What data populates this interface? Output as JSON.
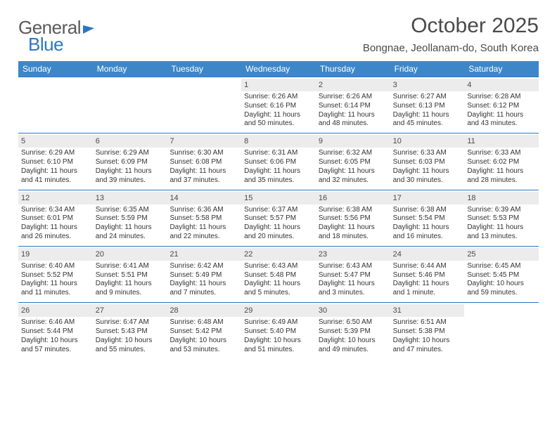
{
  "colors": {
    "header_bg": "#3d87c9",
    "header_text": "#ffffff",
    "week_border": "#2a78c2",
    "daynum_bg": "#ececec",
    "body_text": "#333333",
    "logo_gray": "#5a5a5a",
    "logo_blue": "#2a78c2",
    "page_bg": "#ffffff"
  },
  "typography": {
    "month_title_pt": 30,
    "location_pt": 15,
    "dayheader_pt": 12,
    "daynum_pt": 11,
    "cell_pt": 10,
    "logo_pt": 26,
    "font_family": "Arial"
  },
  "layout": {
    "columns": 7,
    "rows": 5
  },
  "logo": {
    "part1": "General",
    "part2": "Blue"
  },
  "title": "October 2025",
  "location": "Bongnae, Jeollanam-do, South Korea",
  "dayHeaders": [
    "Sunday",
    "Monday",
    "Tuesday",
    "Wednesday",
    "Thursday",
    "Friday",
    "Saturday"
  ],
  "weeks": [
    [
      {
        "empty": true
      },
      {
        "empty": true
      },
      {
        "empty": true
      },
      {
        "day": "1",
        "sunrise": "Sunrise: 6:26 AM",
        "sunset": "Sunset: 6:16 PM",
        "daylight": "Daylight: 11 hours and 50 minutes."
      },
      {
        "day": "2",
        "sunrise": "Sunrise: 6:26 AM",
        "sunset": "Sunset: 6:14 PM",
        "daylight": "Daylight: 11 hours and 48 minutes."
      },
      {
        "day": "3",
        "sunrise": "Sunrise: 6:27 AM",
        "sunset": "Sunset: 6:13 PM",
        "daylight": "Daylight: 11 hours and 45 minutes."
      },
      {
        "day": "4",
        "sunrise": "Sunrise: 6:28 AM",
        "sunset": "Sunset: 6:12 PM",
        "daylight": "Daylight: 11 hours and 43 minutes."
      }
    ],
    [
      {
        "day": "5",
        "sunrise": "Sunrise: 6:29 AM",
        "sunset": "Sunset: 6:10 PM",
        "daylight": "Daylight: 11 hours and 41 minutes."
      },
      {
        "day": "6",
        "sunrise": "Sunrise: 6:29 AM",
        "sunset": "Sunset: 6:09 PM",
        "daylight": "Daylight: 11 hours and 39 minutes."
      },
      {
        "day": "7",
        "sunrise": "Sunrise: 6:30 AM",
        "sunset": "Sunset: 6:08 PM",
        "daylight": "Daylight: 11 hours and 37 minutes."
      },
      {
        "day": "8",
        "sunrise": "Sunrise: 6:31 AM",
        "sunset": "Sunset: 6:06 PM",
        "daylight": "Daylight: 11 hours and 35 minutes."
      },
      {
        "day": "9",
        "sunrise": "Sunrise: 6:32 AM",
        "sunset": "Sunset: 6:05 PM",
        "daylight": "Daylight: 11 hours and 32 minutes."
      },
      {
        "day": "10",
        "sunrise": "Sunrise: 6:33 AM",
        "sunset": "Sunset: 6:03 PM",
        "daylight": "Daylight: 11 hours and 30 minutes."
      },
      {
        "day": "11",
        "sunrise": "Sunrise: 6:33 AM",
        "sunset": "Sunset: 6:02 PM",
        "daylight": "Daylight: 11 hours and 28 minutes."
      }
    ],
    [
      {
        "day": "12",
        "sunrise": "Sunrise: 6:34 AM",
        "sunset": "Sunset: 6:01 PM",
        "daylight": "Daylight: 11 hours and 26 minutes."
      },
      {
        "day": "13",
        "sunrise": "Sunrise: 6:35 AM",
        "sunset": "Sunset: 5:59 PM",
        "daylight": "Daylight: 11 hours and 24 minutes."
      },
      {
        "day": "14",
        "sunrise": "Sunrise: 6:36 AM",
        "sunset": "Sunset: 5:58 PM",
        "daylight": "Daylight: 11 hours and 22 minutes."
      },
      {
        "day": "15",
        "sunrise": "Sunrise: 6:37 AM",
        "sunset": "Sunset: 5:57 PM",
        "daylight": "Daylight: 11 hours and 20 minutes."
      },
      {
        "day": "16",
        "sunrise": "Sunrise: 6:38 AM",
        "sunset": "Sunset: 5:56 PM",
        "daylight": "Daylight: 11 hours and 18 minutes."
      },
      {
        "day": "17",
        "sunrise": "Sunrise: 6:38 AM",
        "sunset": "Sunset: 5:54 PM",
        "daylight": "Daylight: 11 hours and 16 minutes."
      },
      {
        "day": "18",
        "sunrise": "Sunrise: 6:39 AM",
        "sunset": "Sunset: 5:53 PM",
        "daylight": "Daylight: 11 hours and 13 minutes."
      }
    ],
    [
      {
        "day": "19",
        "sunrise": "Sunrise: 6:40 AM",
        "sunset": "Sunset: 5:52 PM",
        "daylight": "Daylight: 11 hours and 11 minutes."
      },
      {
        "day": "20",
        "sunrise": "Sunrise: 6:41 AM",
        "sunset": "Sunset: 5:51 PM",
        "daylight": "Daylight: 11 hours and 9 minutes."
      },
      {
        "day": "21",
        "sunrise": "Sunrise: 6:42 AM",
        "sunset": "Sunset: 5:49 PM",
        "daylight": "Daylight: 11 hours and 7 minutes."
      },
      {
        "day": "22",
        "sunrise": "Sunrise: 6:43 AM",
        "sunset": "Sunset: 5:48 PM",
        "daylight": "Daylight: 11 hours and 5 minutes."
      },
      {
        "day": "23",
        "sunrise": "Sunrise: 6:43 AM",
        "sunset": "Sunset: 5:47 PM",
        "daylight": "Daylight: 11 hours and 3 minutes."
      },
      {
        "day": "24",
        "sunrise": "Sunrise: 6:44 AM",
        "sunset": "Sunset: 5:46 PM",
        "daylight": "Daylight: 11 hours and 1 minute."
      },
      {
        "day": "25",
        "sunrise": "Sunrise: 6:45 AM",
        "sunset": "Sunset: 5:45 PM",
        "daylight": "Daylight: 10 hours and 59 minutes."
      }
    ],
    [
      {
        "day": "26",
        "sunrise": "Sunrise: 6:46 AM",
        "sunset": "Sunset: 5:44 PM",
        "daylight": "Daylight: 10 hours and 57 minutes."
      },
      {
        "day": "27",
        "sunrise": "Sunrise: 6:47 AM",
        "sunset": "Sunset: 5:43 PM",
        "daylight": "Daylight: 10 hours and 55 minutes."
      },
      {
        "day": "28",
        "sunrise": "Sunrise: 6:48 AM",
        "sunset": "Sunset: 5:42 PM",
        "daylight": "Daylight: 10 hours and 53 minutes."
      },
      {
        "day": "29",
        "sunrise": "Sunrise: 6:49 AM",
        "sunset": "Sunset: 5:40 PM",
        "daylight": "Daylight: 10 hours and 51 minutes."
      },
      {
        "day": "30",
        "sunrise": "Sunrise: 6:50 AM",
        "sunset": "Sunset: 5:39 PM",
        "daylight": "Daylight: 10 hours and 49 minutes."
      },
      {
        "day": "31",
        "sunrise": "Sunrise: 6:51 AM",
        "sunset": "Sunset: 5:38 PM",
        "daylight": "Daylight: 10 hours and 47 minutes."
      },
      {
        "empty": true
      }
    ]
  ]
}
